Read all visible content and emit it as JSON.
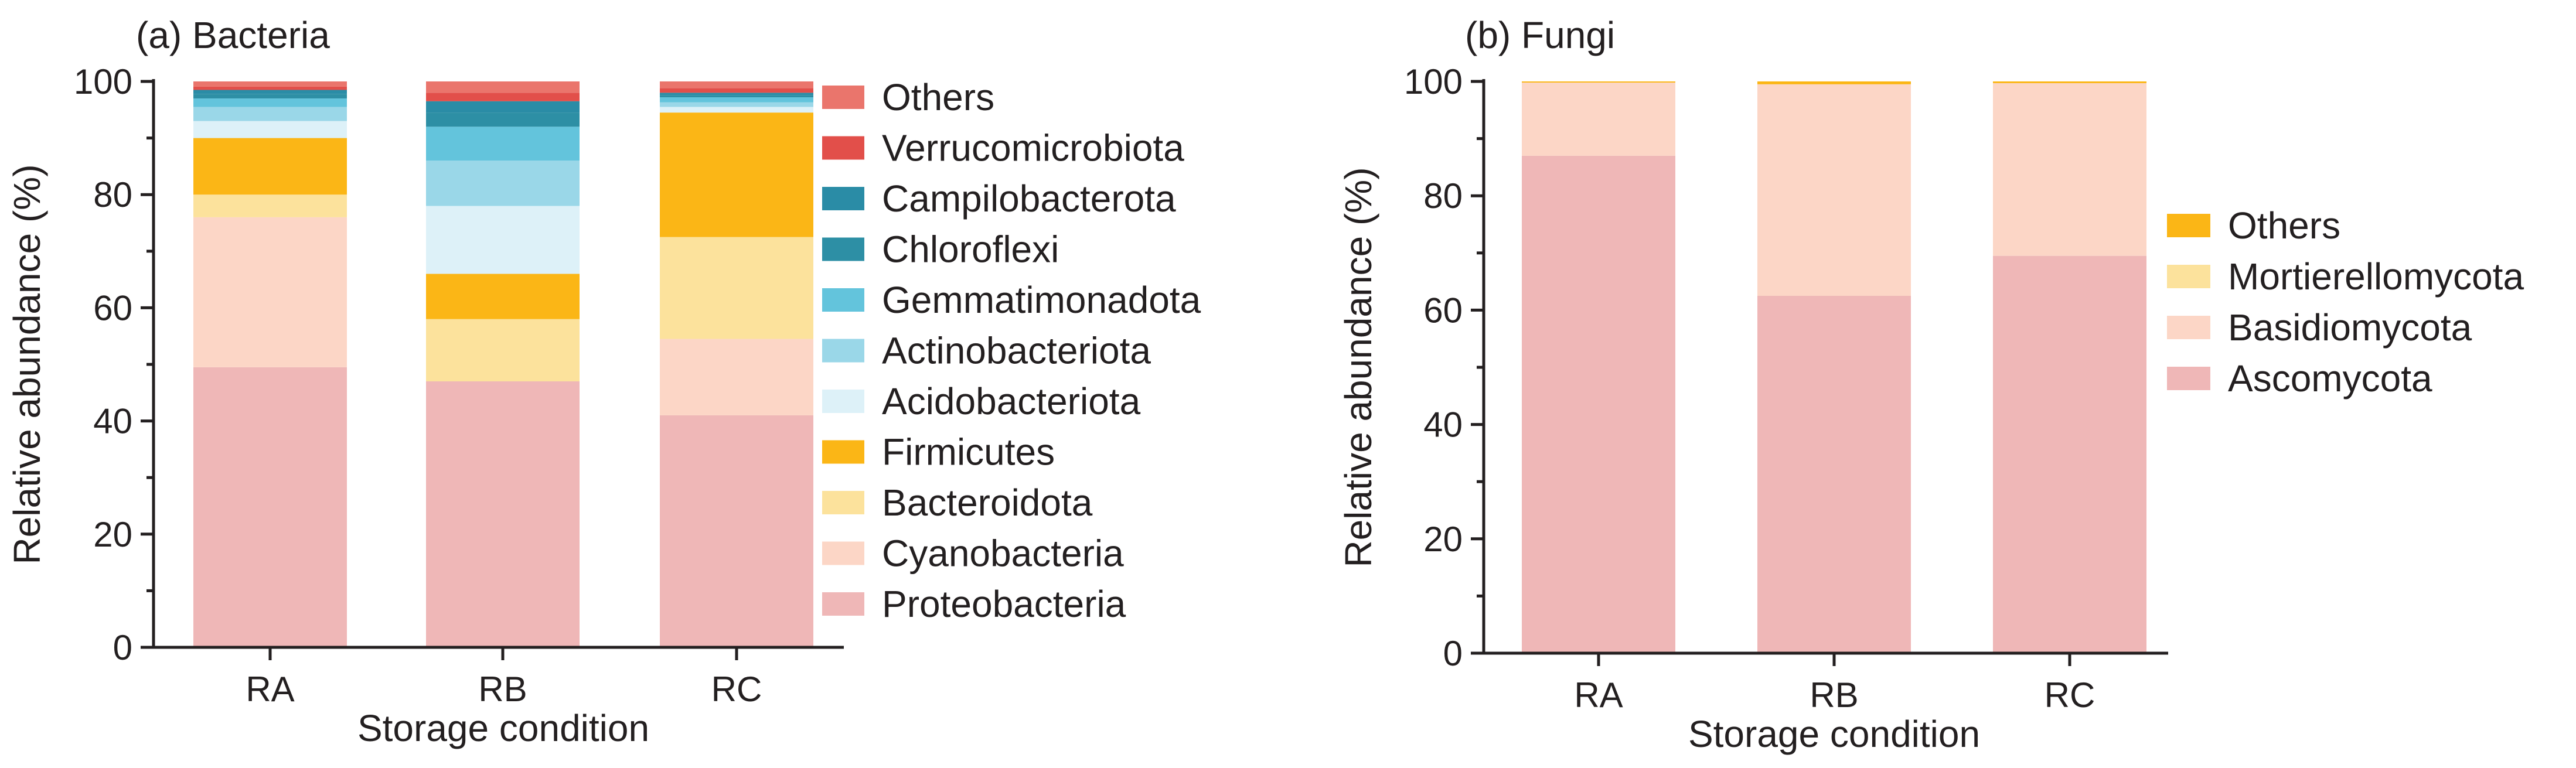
{
  "chart_data": [
    {
      "type": "bar",
      "stacked": true,
      "title": "(a) Bacteria",
      "xlabel": "Storage condition",
      "ylabel": "Relative abundance (%)",
      "ylim": [
        0,
        100
      ],
      "yticks": [
        0,
        20,
        40,
        60,
        80,
        100
      ],
      "categories": [
        "RA",
        "RB",
        "RC"
      ],
      "legend_position": "right",
      "series": [
        {
          "name": "Proteobacteria",
          "color": "#efb7b7",
          "values": [
            49.5,
            47.0,
            41.0
          ]
        },
        {
          "name": "Cyanobacteria",
          "color": "#fcd6c6",
          "values": [
            26.5,
            0.0,
            13.5
          ]
        },
        {
          "name": "Bacteroidota",
          "color": "#fce29c",
          "values": [
            4.0,
            11.0,
            18.0
          ]
        },
        {
          "name": "Firmicutes",
          "color": "#fbb616",
          "values": [
            10.0,
            8.0,
            22.0
          ]
        },
        {
          "name": "Acidobacteriota",
          "color": "#ddf1f8",
          "values": [
            3.0,
            12.0,
            1.0
          ]
        },
        {
          "name": "Actinobacteriota",
          "color": "#9ad7e8",
          "values": [
            2.5,
            8.0,
            0.8
          ]
        },
        {
          "name": "Gemmatimonadota",
          "color": "#63c4dc",
          "values": [
            1.5,
            6.0,
            0.9
          ]
        },
        {
          "name": "Chloroflexi",
          "color": "#2d8fa5",
          "values": [
            0.8,
            2.5,
            0.4
          ]
        },
        {
          "name": "Campilobacterota",
          "color": "#2a8ca6",
          "values": [
            0.7,
            2.0,
            0.4
          ]
        },
        {
          "name": "Verrucomicrobiota",
          "color": "#e24f4a",
          "values": [
            0.6,
            1.5,
            0.8
          ]
        },
        {
          "name": "Others",
          "color": "#ea756c",
          "values": [
            0.9,
            2.0,
            1.2
          ]
        }
      ]
    },
    {
      "type": "bar",
      "stacked": true,
      "title": "(b) Fungi",
      "xlabel": "Storage condition",
      "ylabel": "Relative abundance (%)",
      "ylim": [
        0,
        100
      ],
      "yticks": [
        0,
        20,
        40,
        60,
        80,
        100
      ],
      "categories": [
        "RA",
        "RB",
        "RC"
      ],
      "legend_position": "right",
      "series": [
        {
          "name": "Ascomycota",
          "color": "#efb7b7",
          "values": [
            87.0,
            62.5,
            69.5
          ]
        },
        {
          "name": "Basidiomycota",
          "color": "#fcd6c6",
          "values": [
            12.8,
            37.0,
            30.2
          ]
        },
        {
          "name": "Mortierellomycota",
          "color": "#fce29c",
          "values": [
            0.0,
            0.0,
            0.0
          ]
        },
        {
          "name": "Others",
          "color": "#fbb616",
          "values": [
            0.2,
            0.5,
            0.3
          ]
        }
      ]
    }
  ]
}
